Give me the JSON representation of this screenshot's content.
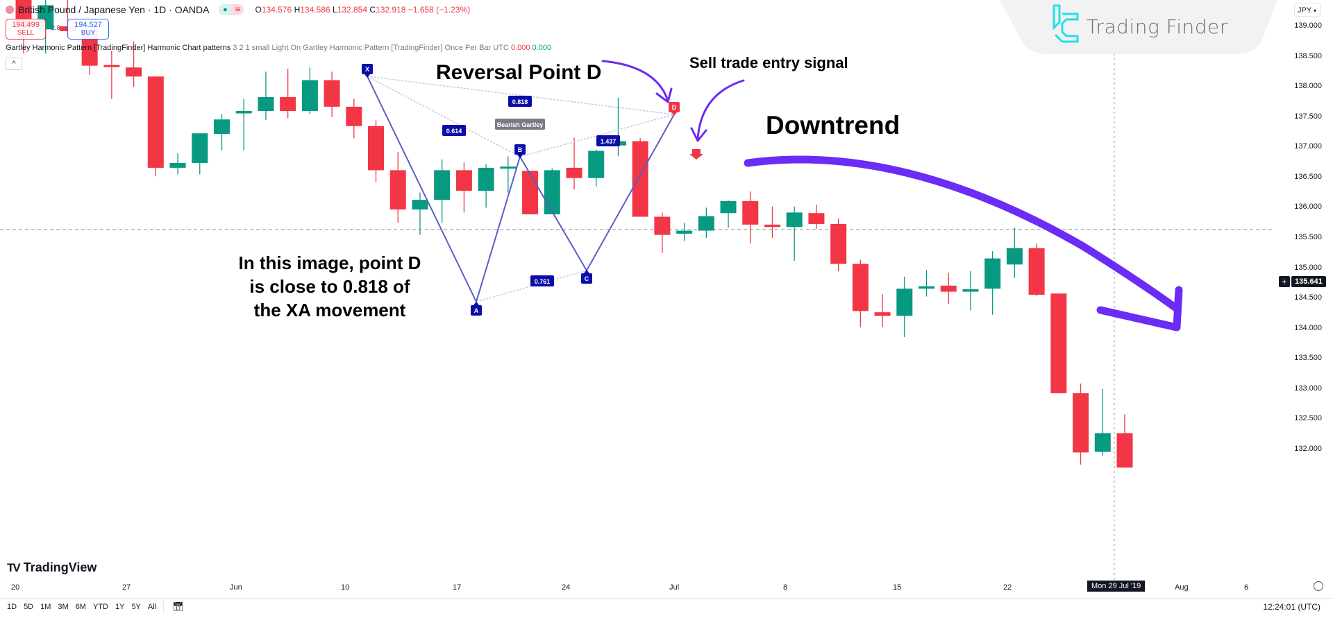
{
  "header": {
    "symbol": "British Pound / Japanese Yen · 1D · OANDA",
    "ohlc": {
      "o_label": "O",
      "o": "134.576",
      "h_label": "H",
      "h": "134.586",
      "l_label": "L",
      "l": "132.854",
      "c_label": "C",
      "c": "132.918",
      "change": "−1.658 (−1.23%)"
    },
    "sell_price": "194.499",
    "sell_label": "SELL",
    "spread": "2.8",
    "buy_price": "194.527",
    "buy_label": "BUY",
    "indicator_name": "Gartley Harmonic Pattern [TradingFinder] Harmonic Chart patterns",
    "indicator_params": "3 2 1 small Light On Gartley Harmonic Pattern [TradingFinder] Once Per Bar UTC",
    "indicator_v1": "0.000",
    "indicator_v2": "0.000",
    "collapse_icon": "^"
  },
  "watermark": {
    "brand": "Trading Finder"
  },
  "price_axis": {
    "currency": "JPY",
    "ticks": [
      "139.000",
      "138.500",
      "138.000",
      "137.500",
      "137.000",
      "136.500",
      "136.000",
      "135.500",
      "135.000",
      "134.500",
      "134.000",
      "133.500",
      "133.000",
      "132.500",
      "132.000"
    ],
    "crosshair_price": "135.641"
  },
  "time_axis": {
    "ticks": [
      "20",
      "27",
      "Jun",
      "10",
      "17",
      "24",
      "Jul",
      "8",
      "15",
      "22",
      "Aug",
      "6"
    ],
    "crosshair_date": "Mon 29 Jul '19"
  },
  "branding": {
    "tradingview": "TradingView"
  },
  "footer": {
    "ranges": [
      "1D",
      "5D",
      "1M",
      "3M",
      "6M",
      "YTD",
      "1Y",
      "5Y",
      "All"
    ],
    "clock": "12:24:01 (UTC)"
  },
  "annotations": {
    "reversal": "Reversal Point D",
    "sell_signal": "Sell trade entry signal",
    "downtrend": "Downtrend",
    "note_line1": "In this image, point D",
    "note_line2": "is close to 0.818 of",
    "note_line3": "the XA movement"
  },
  "pattern": {
    "name": "Bearish Gartley",
    "points": {
      "X": "X",
      "A": "A",
      "B": "B",
      "C": "C",
      "D": "D"
    },
    "ratios": {
      "xb": "0.614",
      "xd": "0.818",
      "ac": "0.761",
      "bd": "1.437"
    }
  },
  "colors": {
    "up": "#089981",
    "down": "#f23645",
    "pattern": "#0a0ea8",
    "arrow": "#6b2cf5"
  },
  "chart_data": {
    "type": "candlestick",
    "title": "British Pound / Japanese Yen · 1D · OANDA",
    "xlabel": "",
    "ylabel": "JPY",
    "ylim": [
      131.6,
      139.4
    ],
    "x_ticks": [
      "20",
      "27",
      "Jun",
      "10",
      "17",
      "24",
      "Jul",
      "8",
      "15",
      "22",
      "Aug",
      "6"
    ],
    "candles": [
      {
        "o": 139.55,
        "h": 139.7,
        "l": 138.55,
        "c": 138.95
      },
      {
        "o": 138.95,
        "h": 139.65,
        "l": 138.55,
        "c": 139.35
      },
      {
        "o": 139.0,
        "h": 139.5,
        "l": 139.0,
        "c": 138.92
      },
      {
        "o": 138.92,
        "h": 139.05,
        "l": 138.2,
        "c": 138.35
      },
      {
        "o": 138.36,
        "h": 138.6,
        "l": 137.8,
        "c": 138.34
      },
      {
        "o": 138.32,
        "h": 138.75,
        "l": 138.0,
        "c": 138.17
      },
      {
        "o": 138.17,
        "h": 138.17,
        "l": 136.52,
        "c": 136.66
      },
      {
        "o": 136.66,
        "h": 136.9,
        "l": 136.55,
        "c": 136.74
      },
      {
        "o": 136.74,
        "h": 137.2,
        "l": 136.55,
        "c": 137.23
      },
      {
        "o": 137.22,
        "h": 137.55,
        "l": 136.95,
        "c": 137.46
      },
      {
        "o": 137.56,
        "h": 137.8,
        "l": 136.95,
        "c": 137.6
      },
      {
        "o": 137.6,
        "h": 138.25,
        "l": 137.45,
        "c": 137.83
      },
      {
        "o": 137.83,
        "h": 138.3,
        "l": 137.48,
        "c": 137.6
      },
      {
        "o": 137.6,
        "h": 138.32,
        "l": 137.55,
        "c": 138.11
      },
      {
        "o": 138.11,
        "h": 138.25,
        "l": 137.5,
        "c": 137.67
      },
      {
        "o": 137.67,
        "h": 137.8,
        "l": 137.15,
        "c": 137.35
      },
      {
        "o": 137.35,
        "h": 137.45,
        "l": 136.42,
        "c": 136.62
      },
      {
        "o": 136.62,
        "h": 136.92,
        "l": 135.75,
        "c": 135.97
      },
      {
        "o": 135.97,
        "h": 136.25,
        "l": 135.55,
        "c": 136.13
      },
      {
        "o": 136.13,
        "h": 136.8,
        "l": 135.75,
        "c": 136.62
      },
      {
        "o": 136.62,
        "h": 136.75,
        "l": 135.92,
        "c": 136.28
      },
      {
        "o": 136.28,
        "h": 136.72,
        "l": 136.0,
        "c": 136.66
      },
      {
        "o": 136.66,
        "h": 136.85,
        "l": 136.25,
        "c": 136.68
      },
      {
        "o": 136.61,
        "h": 136.61,
        "l": 135.89,
        "c": 135.89
      },
      {
        "o": 135.89,
        "h": 136.65,
        "l": 136.0,
        "c": 136.62
      },
      {
        "o": 136.66,
        "h": 137.16,
        "l": 136.3,
        "c": 136.49
      },
      {
        "o": 136.49,
        "h": 136.96,
        "l": 136.35,
        "c": 136.94
      },
      {
        "o": 137.03,
        "h": 137.82,
        "l": 136.85,
        "c": 137.1
      },
      {
        "o": 137.1,
        "h": 137.15,
        "l": 135.85,
        "c": 135.85
      },
      {
        "o": 135.85,
        "h": 135.92,
        "l": 135.25,
        "c": 135.55
      },
      {
        "o": 135.57,
        "h": 135.75,
        "l": 135.45,
        "c": 135.62
      },
      {
        "o": 135.62,
        "h": 136.0,
        "l": 135.5,
        "c": 135.86
      },
      {
        "o": 135.91,
        "h": 136.12,
        "l": 135.67,
        "c": 136.11
      },
      {
        "o": 136.11,
        "h": 136.27,
        "l": 135.41,
        "c": 135.72
      },
      {
        "o": 135.72,
        "h": 136.02,
        "l": 135.5,
        "c": 135.68
      },
      {
        "o": 135.68,
        "h": 136.02,
        "l": 135.12,
        "c": 135.92
      },
      {
        "o": 135.91,
        "h": 136.05,
        "l": 135.65,
        "c": 135.73
      },
      {
        "o": 135.73,
        "h": 135.82,
        "l": 134.95,
        "c": 135.07
      },
      {
        "o": 135.07,
        "h": 135.14,
        "l": 134.02,
        "c": 134.29
      },
      {
        "o": 134.27,
        "h": 134.57,
        "l": 134.02,
        "c": 134.21
      },
      {
        "o": 134.21,
        "h": 134.86,
        "l": 133.86,
        "c": 134.66
      },
      {
        "o": 134.66,
        "h": 134.97,
        "l": 134.53,
        "c": 134.7
      },
      {
        "o": 134.71,
        "h": 134.92,
        "l": 134.41,
        "c": 134.61
      },
      {
        "o": 134.61,
        "h": 134.95,
        "l": 134.3,
        "c": 134.65
      },
      {
        "o": 134.66,
        "h": 135.28,
        "l": 134.23,
        "c": 135.16
      },
      {
        "o": 135.06,
        "h": 135.67,
        "l": 134.84,
        "c": 135.33
      },
      {
        "o": 135.33,
        "h": 135.41,
        "l": 134.54,
        "c": 134.56
      },
      {
        "o": 134.58,
        "h": 134.58,
        "l": 132.93,
        "c": 132.93
      },
      {
        "o": 132.93,
        "h": 133.09,
        "l": 131.75,
        "c": 131.95
      },
      {
        "o": 131.96,
        "h": 133.0,
        "l": 131.9,
        "c": 132.27
      },
      {
        "o": 132.27,
        "h": 132.58,
        "l": 131.7,
        "c": 131.7
      }
    ],
    "crosshair": {
      "price": 135.641,
      "date": "Mon 29 Jul '19"
    }
  }
}
